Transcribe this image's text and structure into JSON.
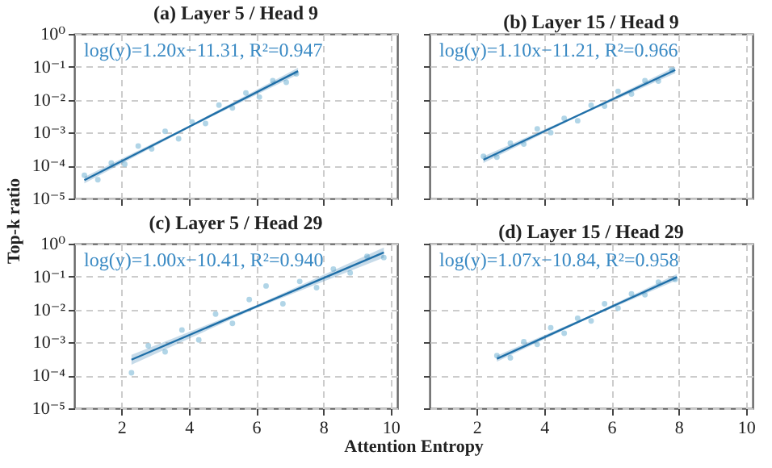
{
  "chart_data": [
    {
      "type": "scatter",
      "title": "(a) Layer 5 / Head 9",
      "annotations": [
        "log(y)=1.20x−11.31, R²=0.947"
      ],
      "log": "y",
      "grid": true,
      "tick_labels": "y",
      "xlim": [
        0.6,
        10.2
      ],
      "xticks": [
        2,
        4,
        6,
        8,
        10
      ],
      "ylim": [
        1e-05,
        1
      ],
      "yticks": [
        {
          "value": 1e-05,
          "label": "10⁻⁵"
        },
        {
          "value": 0.0001,
          "label": "10⁻⁴"
        },
        {
          "value": 0.001,
          "label": "10⁻³"
        },
        {
          "value": 0.01,
          "label": "10⁻²"
        },
        {
          "value": 0.1,
          "label": "10⁻¹"
        },
        {
          "value": 1,
          "label": "10⁰"
        }
      ],
      "series": [
        {
          "type": "scatter",
          "marker": "circle",
          "color": "#9ecae1",
          "x": [
            0.9,
            1.3,
            1.7,
            2.1,
            2.5,
            2.9,
            3.3,
            3.7,
            4.1,
            4.5,
            4.9,
            5.3,
            5.7,
            6.1,
            6.5,
            6.9,
            7.2
          ],
          "values": [
            5.1e-05,
            3.7e-05,
            0.00012,
            0.00011,
            0.00039,
            0.00032,
            0.0011,
            0.00065,
            0.0021,
            0.0019,
            0.0069,
            0.0056,
            0.016,
            0.012,
            0.038,
            0.034,
            0.061
          ]
        },
        {
          "type": "line",
          "color": "#1f6fa8",
          "x": [
            0.9,
            4.1,
            7.25
          ],
          "values": [
            3.6e-05,
            0.00168,
            0.074
          ],
          "lower": [
            2.9e-05,
            0.00156,
            0.059
          ],
          "upper": [
            4.5e-05,
            0.0018,
            0.093
          ]
        }
      ]
    },
    {
      "type": "scatter",
      "title": "(b) Layer 15 / Head 9",
      "annotations": [
        "log(y)=1.10x−11.21, R²=0.966"
      ],
      "log": "y",
      "grid": true,
      "tick_labels": false,
      "xlim": [
        0.6,
        10.2
      ],
      "xticks": [
        2,
        4,
        6,
        8,
        10
      ],
      "ylim": [
        1e-05,
        1
      ],
      "yticks": [
        1e-05,
        0.0001,
        0.001,
        0.01,
        0.1,
        1
      ],
      "series": [
        {
          "type": "scatter",
          "marker": "circle",
          "color": "#9ecae1",
          "x": [
            2.2,
            2.6,
            3.0,
            3.4,
            3.8,
            4.2,
            4.6,
            5.0,
            5.4,
            5.8,
            6.2,
            6.6,
            7.0,
            7.4,
            7.8
          ],
          "values": [
            0.00019,
            0.00018,
            0.00048,
            0.00045,
            0.0013,
            0.001,
            0.0027,
            0.0023,
            0.0068,
            0.0064,
            0.018,
            0.015,
            0.038,
            0.037,
            0.081
          ]
        },
        {
          "type": "line",
          "color": "#1f6fa8",
          "x": [
            2.2,
            5.0,
            7.9
          ],
          "values": [
            0.00015,
            0.0033,
            0.08
          ],
          "lower": [
            0.00012,
            0.00307,
            0.064
          ],
          "upper": [
            0.00019,
            0.0035,
            0.1
          ]
        }
      ]
    },
    {
      "type": "scatter",
      "title": "(c) Layer 5 / Head 29",
      "xlabel": "Attention Entropy",
      "ylabel": "Top-k ratio",
      "annotations": [
        "log(y)=1.00x−10.41, R²=0.940"
      ],
      "log": "y",
      "grid": true,
      "xlim": [
        0.6,
        10.2
      ],
      "xticks": [
        2,
        4,
        6,
        8,
        10
      ],
      "ylim": [
        1e-05,
        1
      ],
      "yticks": [
        {
          "value": 1e-05,
          "label": "10⁻⁵"
        },
        {
          "value": 0.0001,
          "label": "10⁻⁴"
        },
        {
          "value": 0.001,
          "label": "10⁻³"
        },
        {
          "value": 0.01,
          "label": "10⁻²"
        },
        {
          "value": 0.1,
          "label": "10⁻¹"
        },
        {
          "value": 1,
          "label": "10⁰"
        }
      ],
      "series": [
        {
          "type": "scatter",
          "marker": "circle",
          "color": "#9ecae1",
          "x": [
            2.3,
            2.8,
            3.3,
            3.8,
            4.3,
            4.8,
            5.3,
            5.8,
            6.3,
            6.8,
            7.3,
            7.8,
            8.3,
            8.8,
            9.3,
            9.8
          ],
          "values": [
            0.00012,
            0.00079,
            0.00052,
            0.0024,
            0.0012,
            0.0073,
            0.0038,
            0.02,
            0.052,
            0.015,
            0.071,
            0.046,
            0.17,
            0.13,
            0.41,
            0.38
          ]
        },
        {
          "type": "line",
          "color": "#1f6fa8",
          "x": [
            2.3,
            6.0,
            9.8
          ],
          "values": [
            0.0003,
            0.0122,
            0.54
          ],
          "lower": [
            0.00021,
            0.011,
            0.38
          ],
          "upper": [
            0.00042,
            0.0134,
            0.76
          ]
        }
      ]
    },
    {
      "type": "scatter",
      "title": "(d) Layer 15 / Head 29",
      "annotations": [
        "log(y)=1.07x−10.84, R²=0.958"
      ],
      "log": "y",
      "grid": true,
      "tick_labels": "x",
      "xlim": [
        0.6,
        10.2
      ],
      "xticks": [
        2,
        4,
        6,
        8,
        10
      ],
      "ylim": [
        1e-05,
        1
      ],
      "yticks": [
        1e-05,
        0.0001,
        0.001,
        0.01,
        0.1,
        1
      ],
      "series": [
        {
          "type": "scatter",
          "marker": "circle",
          "color": "#9ecae1",
          "x": [
            2.6,
            3.0,
            3.4,
            3.8,
            4.2,
            4.6,
            5.0,
            5.4,
            5.8,
            6.2,
            6.6,
            7.0,
            7.4,
            7.9
          ],
          "values": [
            0.0004,
            0.00034,
            0.00105,
            0.00087,
            0.0028,
            0.0019,
            0.0054,
            0.0045,
            0.015,
            0.011,
            0.03,
            0.028,
            0.068,
            0.082
          ]
        },
        {
          "type": "line",
          "color": "#1f6fa8",
          "x": [
            2.6,
            5.3,
            7.95
          ],
          "values": [
            0.00032,
            0.0057,
            0.097
          ],
          "lower": [
            0.00026,
            0.0053,
            0.078
          ],
          "upper": [
            0.0004,
            0.0061,
            0.12
          ]
        }
      ]
    }
  ]
}
